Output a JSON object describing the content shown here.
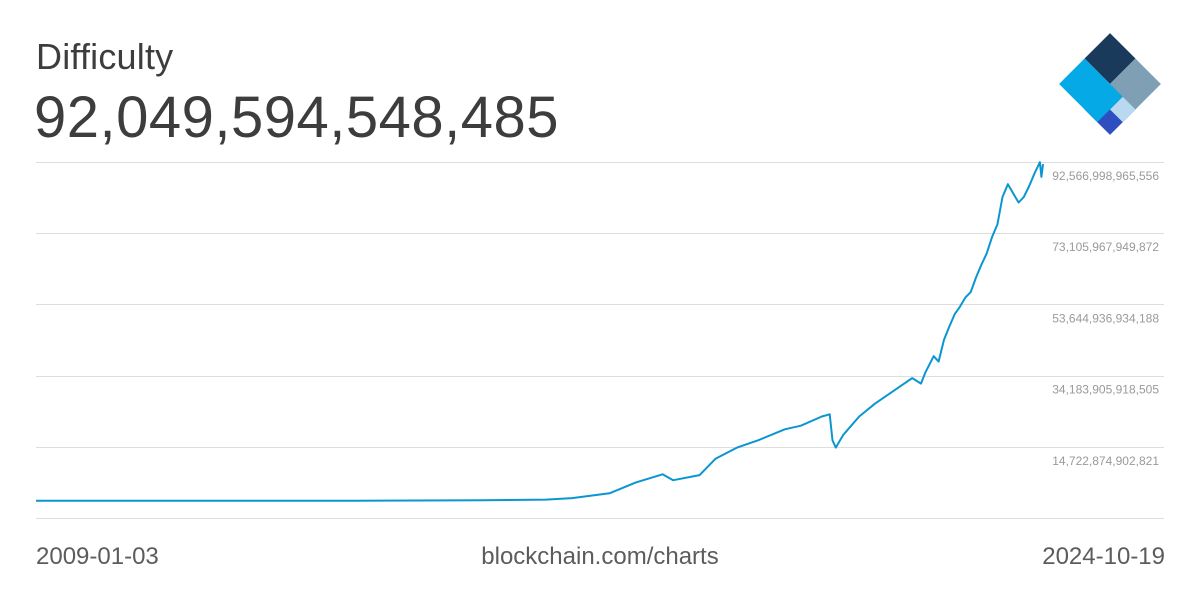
{
  "header": {
    "title": "Difficulty",
    "value": "92,049,594,548,485"
  },
  "logo": {
    "icon": "blockchain-diamond-icon",
    "colors": [
      "#1a3a5c",
      "#7f9fb5",
      "#2f4fc0",
      "#04a9e6",
      "#b8d9ef"
    ]
  },
  "footer": {
    "start_date": "2009-01-03",
    "source": "blockchain.com/charts",
    "end_date": "2024-10-19"
  },
  "colors": {
    "line": "#0b96d1",
    "grid": "#dddddd",
    "label": "#9a9a9a"
  },
  "chart_data": {
    "type": "line",
    "title": "Difficulty",
    "x_range": [
      "2009-01-03",
      "2024-10-19"
    ],
    "y_tick_labels": [
      "92,566,998,965,556",
      "73,105,967,949,872",
      "53,644,936,934,188",
      "34,183,905,918,505",
      "14,722,874,902,821"
    ],
    "y_ticks": [
      92566998965556,
      73105967949872,
      53644936934188,
      34183905918505,
      14722874902821
    ],
    "ylim": [
      -4738156112863,
      92566998965556
    ],
    "grid": true,
    "series": [
      {
        "points": [
          [
            "2009-01-03",
            0
          ],
          [
            "2013-01-01",
            3000000000.0
          ],
          [
            "2014-01-01",
            2000000000.0
          ],
          [
            "2015-01-01",
            40000000000.0
          ],
          [
            "2016-01-01",
            100000000000.0
          ],
          [
            "2017-01-01",
            300000000000.0
          ],
          [
            "2017-06-01",
            700000000000.0
          ],
          [
            "2018-01-01",
            2000000000000.0
          ],
          [
            "2018-06-01",
            5000000000000.0
          ],
          [
            "2018-11-01",
            7200000000000.0
          ],
          [
            "2019-01-01",
            5600000000000.0
          ],
          [
            "2019-06-01",
            7000000000000.0
          ],
          [
            "2019-09-01",
            11500000000000.0
          ],
          [
            "2020-01-01",
            14500000000000.0
          ],
          [
            "2020-05-01",
            16500000000000.0
          ],
          [
            "2020-10-01",
            19500000000000.0
          ],
          [
            "2021-01-01",
            20500000000000.0
          ],
          [
            "2021-05-01",
            23000000000000.0
          ],
          [
            "2021-06-15",
            23600000000000.0
          ],
          [
            "2021-07-01",
            16500000000000.0
          ],
          [
            "2021-07-20",
            14500000000000.0
          ],
          [
            "2021-09-01",
            18000000000000.0
          ],
          [
            "2021-12-01",
            23000000000000.0
          ],
          [
            "2022-03-01",
            26500000000000.0
          ],
          [
            "2022-06-01",
            29500000000000.0
          ],
          [
            "2022-10-01",
            33500000000000.0
          ],
          [
            "2022-11-20",
            32000000000000.0
          ],
          [
            "2022-12-15",
            35000000000000.0
          ],
          [
            "2023-02-01",
            39500000000000.0
          ],
          [
            "2023-03-01",
            38000000000000.0
          ],
          [
            "2023-04-01",
            44000000000000.0
          ],
          [
            "2023-05-01",
            47500000000000.0
          ],
          [
            "2023-06-01",
            51000000000000.0
          ],
          [
            "2023-07-01",
            53000000000000.0
          ],
          [
            "2023-08-01",
            55500000000000.0
          ],
          [
            "2023-09-01",
            57000000000000.0
          ],
          [
            "2023-10-01",
            61000000000000.0
          ],
          [
            "2023-11-01",
            64500000000000.0
          ],
          [
            "2023-12-01",
            67500000000000.0
          ],
          [
            "2024-01-01",
            72000000000000.0
          ],
          [
            "2024-02-01",
            75500000000000.0
          ],
          [
            "2024-03-01",
            83000000000000.0
          ],
          [
            "2024-04-01",
            86500000000000.0
          ],
          [
            "2024-05-01",
            84000000000000.0
          ],
          [
            "2024-06-01",
            81500000000000.0
          ],
          [
            "2024-07-01",
            83000000000000.0
          ],
          [
            "2024-08-01",
            86000000000000.0
          ],
          [
            "2024-09-01",
            89500000000000.0
          ],
          [
            "2024-10-01",
            92500000000000.0
          ],
          [
            "2024-10-10",
            88500000000000.0
          ],
          [
            "2024-10-19",
            92000000000000.0
          ]
        ]
      }
    ]
  }
}
